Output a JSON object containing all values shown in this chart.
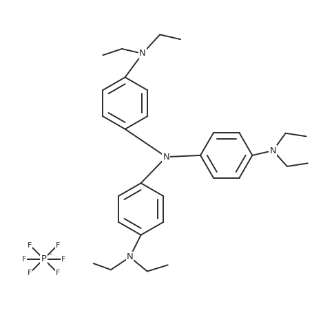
{
  "bg_color": "#ffffff",
  "line_color": "#2a2a2a",
  "line_width": 1.4,
  "font_size": 9.5,
  "figsize": [
    4.69,
    4.61
  ],
  "dpi": 100,
  "xlim": [
    0,
    10
  ],
  "ylim": [
    0,
    10
  ]
}
